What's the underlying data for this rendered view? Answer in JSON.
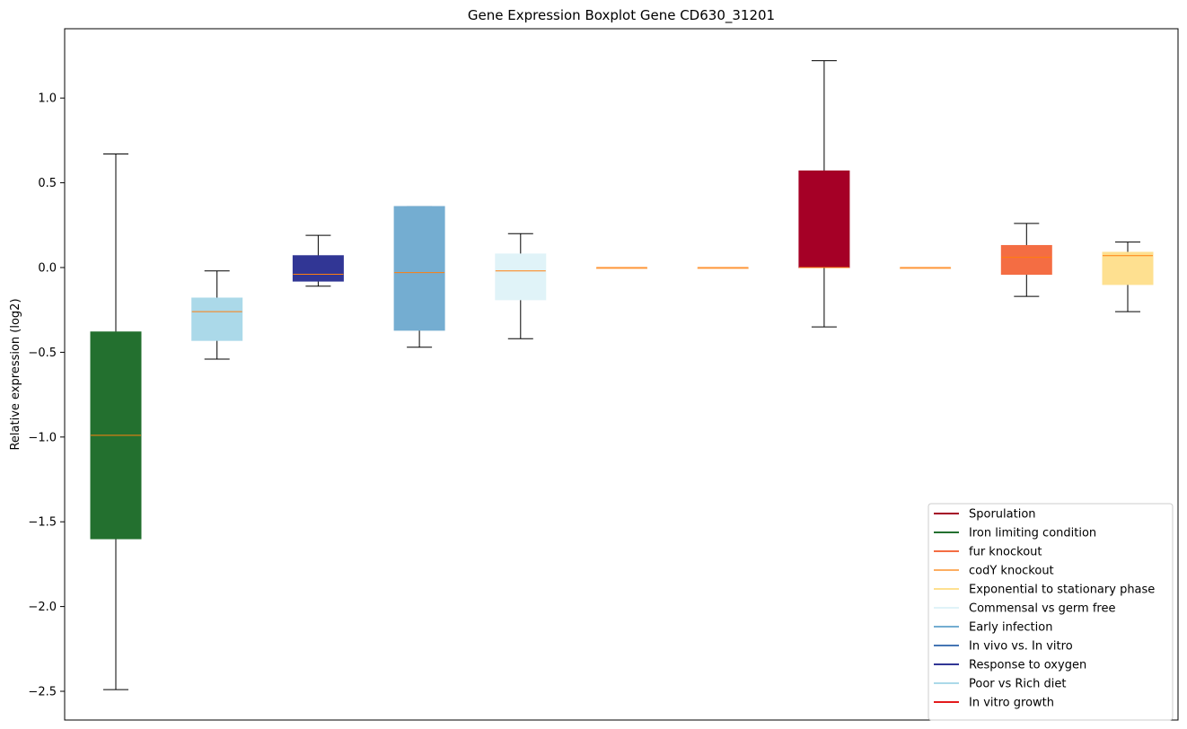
{
  "chart_data": {
    "type": "boxplot",
    "title": "Gene Expression Boxplot Gene CD630_31201",
    "xlabel": "",
    "ylabel": "Relative expression (log2)",
    "ylim": [
      -2.7,
      1.4
    ],
    "yticks": [
      {
        "value": 1.0,
        "label": "1.0"
      },
      {
        "value": 0.5,
        "label": "0.5"
      },
      {
        "value": 0.0,
        "label": "0.0"
      },
      {
        "value": -0.5,
        "label": "−0.5"
      },
      {
        "value": -1.0,
        "label": "−1.0"
      },
      {
        "value": -1.5,
        "label": "−1.5"
      },
      {
        "value": -2.0,
        "label": "−2.0"
      },
      {
        "value": -2.5,
        "label": "−2.5"
      }
    ],
    "grid": false,
    "legend_position": "lower-right",
    "boxes": [
      {
        "color": "#23702f",
        "whisker_low": -2.49,
        "q1": -1.6,
        "median": -0.99,
        "q3": -0.38,
        "whisker_high": 0.67
      },
      {
        "color": "#abd9e9",
        "whisker_low": -0.54,
        "q1": -0.43,
        "median": -0.26,
        "q3": -0.18,
        "whisker_high": -0.02
      },
      {
        "color": "#313695",
        "whisker_low": -0.11,
        "q1": -0.08,
        "median": -0.04,
        "q3": 0.07,
        "whisker_high": 0.19
      },
      {
        "color": "#74add1",
        "whisker_low": -0.47,
        "q1": -0.37,
        "median": -0.03,
        "q3": 0.36,
        "whisker_high": 0.36
      },
      {
        "color": "#e0f3f8",
        "whisker_low": -0.42,
        "q1": -0.19,
        "median": -0.02,
        "q3": 0.08,
        "whisker_high": 0.2
      },
      {
        "color": "#fdae61",
        "whisker_low": 0.0,
        "q1": 0.0,
        "median": 0.0,
        "q3": 0.0,
        "whisker_high": 0.0
      },
      {
        "color": "#fdae61",
        "whisker_low": 0.0,
        "q1": 0.0,
        "median": 0.0,
        "q3": 0.0,
        "whisker_high": 0.0
      },
      {
        "color": "#a50026",
        "whisker_low": -0.35,
        "q1": 0.0,
        "median": 0.0,
        "q3": 0.57,
        "whisker_high": 1.22
      },
      {
        "color": "#fdae61",
        "whisker_low": 0.0,
        "q1": 0.0,
        "median": 0.0,
        "q3": 0.0,
        "whisker_high": 0.0
      },
      {
        "color": "#f46d43",
        "whisker_low": -0.17,
        "q1": -0.04,
        "median": 0.06,
        "q3": 0.13,
        "whisker_high": 0.26
      },
      {
        "color": "#fee090",
        "whisker_low": -0.26,
        "q1": -0.1,
        "median": 0.07,
        "q3": 0.09,
        "whisker_high": 0.15
      }
    ],
    "median_color": "#ff7f0e",
    "legend": [
      {
        "label": "Sporulation",
        "color": "#a50026"
      },
      {
        "label": "Iron limiting condition",
        "color": "#23702f"
      },
      {
        "label": "fur knockout",
        "color": "#f46d43"
      },
      {
        "label": "codY knockout",
        "color": "#fdae61"
      },
      {
        "label": "Exponential to stationary phase",
        "color": "#fee090"
      },
      {
        "label": "Commensal vs germ free",
        "color": "#e0f3f8"
      },
      {
        "label": "Early infection",
        "color": "#74add1"
      },
      {
        "label": "In vivo vs. In vitro",
        "color": "#4575b4"
      },
      {
        "label": "Response to oxygen",
        "color": "#313695"
      },
      {
        "label": "Poor vs Rich diet",
        "color": "#abd9e9"
      },
      {
        "label": "In vitro growth",
        "color": "#e31a1c"
      }
    ]
  }
}
